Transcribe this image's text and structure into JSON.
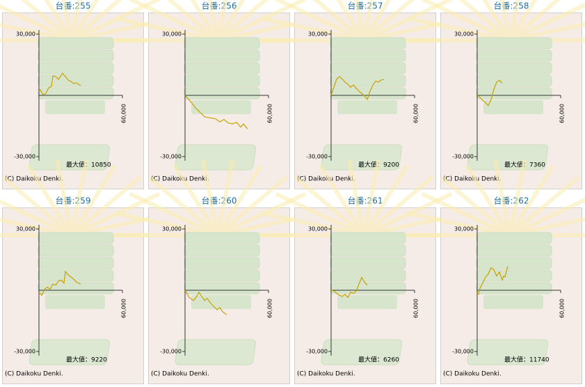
{
  "chart_data": [
    {
      "type": "line",
      "title": "台番:255",
      "annotation": "最大値：10850",
      "footer": "(C) Daikoku Denki.",
      "color": "#c9a000",
      "x": [
        0,
        1000,
        3000,
        5000,
        7000,
        9000,
        10000,
        12000,
        14000,
        17000,
        19000,
        21000,
        23000,
        25000,
        27000,
        30000
      ],
      "values": [
        2000,
        2700,
        300,
        1000,
        3700,
        4400,
        9500,
        9200,
        7800,
        10850,
        9200,
        7500,
        6800,
        5800,
        6100,
        4800
      ],
      "xlim": [
        0,
        60000
      ],
      "ylim": [
        -30000,
        30000
      ],
      "xticks": [
        {
          "value": 60000,
          "label": "60,000"
        }
      ],
      "yticks": [
        {
          "value": 30000,
          "label": "30,000"
        },
        {
          "value": -30000,
          "label": "-30,000"
        }
      ]
    },
    {
      "type": "line",
      "title": "台番:256",
      "footer": "(C) Daikoku Denki.",
      "color": "#c9a000",
      "x": [
        0,
        4000,
        8000,
        12000,
        14000,
        18000,
        22000,
        25000,
        28000,
        31000,
        34000,
        37000,
        40000,
        42000,
        45000
      ],
      "values": [
        0,
        -3000,
        -6500,
        -9000,
        -10500,
        -11000,
        -11500,
        -13000,
        -11800,
        -13500,
        -14000,
        -13200,
        -15500,
        -14000,
        -16500
      ],
      "xlim": [
        0,
        60000
      ],
      "ylim": [
        -30000,
        30000
      ],
      "xticks": [
        {
          "value": 60000,
          "label": "60,000"
        }
      ],
      "yticks": [
        {
          "value": 30000,
          "label": "30,000"
        },
        {
          "value": -30000,
          "label": "-30,000"
        }
      ]
    },
    {
      "type": "line",
      "title": "台番:257",
      "annotation": "最大値：9200",
      "footer": "(C) Daikoku Denki.",
      "color": "#c9a000",
      "x": [
        0,
        2000,
        4000,
        6000,
        8000,
        10000,
        12000,
        14000,
        16000,
        18000,
        20000,
        22000,
        24000,
        26000,
        28000,
        30000,
        32000,
        34000,
        36000,
        38000
      ],
      "values": [
        0,
        4000,
        8000,
        9200,
        8000,
        6500,
        5500,
        4000,
        5000,
        3500,
        2000,
        1000,
        -300,
        -2000,
        2000,
        5000,
        7000,
        6500,
        7500,
        7800
      ],
      "xlim": [
        0,
        60000
      ],
      "ylim": [
        -30000,
        30000
      ],
      "xticks": [
        {
          "value": 60000,
          "label": "60,000"
        }
      ],
      "yticks": [
        {
          "value": 30000,
          "label": "30,000"
        },
        {
          "value": -30000,
          "label": "-30,000"
        }
      ]
    },
    {
      "type": "line",
      "title": "台番:258",
      "annotation": "最大値：7360",
      "footer": "(C) Daikoku Denki.",
      "color": "#c9a000",
      "x": [
        0,
        2000,
        4000,
        6000,
        8000,
        10000,
        12000,
        14000,
        16000,
        18000
      ],
      "values": [
        0,
        -1000,
        -2500,
        -3500,
        -5000,
        -2000,
        3000,
        6500,
        7360,
        6000
      ],
      "xlim": [
        0,
        60000
      ],
      "ylim": [
        -30000,
        30000
      ],
      "xticks": [
        {
          "value": 60000,
          "label": "60,000"
        }
      ],
      "yticks": [
        {
          "value": 30000,
          "label": "30,000"
        },
        {
          "value": -30000,
          "label": "-30,000"
        }
      ]
    },
    {
      "type": "line",
      "title": "台番:259",
      "annotation": "最大値：9220",
      "footer": "(C) Daikoku Denki.",
      "color": "#c9a000",
      "x": [
        0,
        2000,
        4000,
        6000,
        8000,
        10000,
        12000,
        14000,
        16000,
        18000,
        19000,
        21000,
        24000,
        27000,
        30000
      ],
      "values": [
        -1000,
        -2500,
        500,
        1500,
        500,
        3000,
        2500,
        4500,
        5000,
        3500,
        9220,
        7500,
        6000,
        4000,
        3000
      ],
      "xlim": [
        0,
        60000
      ],
      "ylim": [
        -30000,
        30000
      ],
      "xticks": [
        {
          "value": 60000,
          "label": "60,000"
        }
      ],
      "yticks": [
        {
          "value": 30000,
          "label": "30,000"
        },
        {
          "value": -30000,
          "label": "-30,000"
        }
      ]
    },
    {
      "type": "line",
      "title": "台番:260",
      "footer": "(C) Daikoku Denki.",
      "color": "#c9a000",
      "x": [
        0,
        3000,
        6000,
        8000,
        10000,
        12000,
        14000,
        16000,
        18000,
        20000,
        23000,
        25000,
        27000,
        30000
      ],
      "values": [
        0,
        -3500,
        -5000,
        -3500,
        -1000,
        -3000,
        -5000,
        -4000,
        -6000,
        -7500,
        -9500,
        -8500,
        -10500,
        -12000
      ],
      "xlim": [
        0,
        60000
      ],
      "ylim": [
        -30000,
        30000
      ],
      "xticks": [
        {
          "value": 60000,
          "label": "60,000"
        }
      ],
      "yticks": [
        {
          "value": 30000,
          "label": "30,000"
        },
        {
          "value": -30000,
          "label": "-30,000"
        }
      ]
    },
    {
      "type": "line",
      "title": "台番:261",
      "annotation": "最大値：6260",
      "footer": "(C) Daikoku Denki.",
      "color": "#c9a000",
      "x": [
        0,
        2000,
        4000,
        6000,
        8000,
        10000,
        12000,
        14000,
        16000,
        18000,
        20000,
        22000,
        24000,
        26000
      ],
      "values": [
        0,
        -300,
        -1500,
        -2500,
        -3000,
        -2000,
        -3500,
        -1000,
        -1500,
        -500,
        3000,
        6260,
        4000,
        2500
      ],
      "xlim": [
        0,
        60000
      ],
      "ylim": [
        -30000,
        30000
      ],
      "xticks": [
        {
          "value": 60000,
          "label": "60,000"
        }
      ],
      "yticks": [
        {
          "value": 30000,
          "label": "30,000"
        },
        {
          "value": -30000,
          "label": "-30,000"
        }
      ]
    },
    {
      "type": "line",
      "title": "台番:262",
      "annotation": "最大値：11740",
      "footer": "(C) Daikoku Denki.",
      "color": "#c9a000",
      "x": [
        0,
        1000,
        2000,
        4000,
        6000,
        8000,
        10000,
        12000,
        14000,
        16000,
        18000,
        19000,
        20000,
        22000
      ],
      "values": [
        -1500,
        -2000,
        1000,
        3500,
        6500,
        8000,
        11000,
        10000,
        7000,
        9000,
        5000,
        7000,
        6500,
        11740
      ],
      "xlim": [
        0,
        60000
      ],
      "ylim": [
        -30000,
        30000
      ],
      "xticks": [
        {
          "value": 60000,
          "label": "60,000"
        }
      ],
      "yticks": [
        {
          "value": 30000,
          "label": "30,000"
        },
        {
          "value": -30000,
          "label": "-30,000"
        }
      ]
    }
  ]
}
